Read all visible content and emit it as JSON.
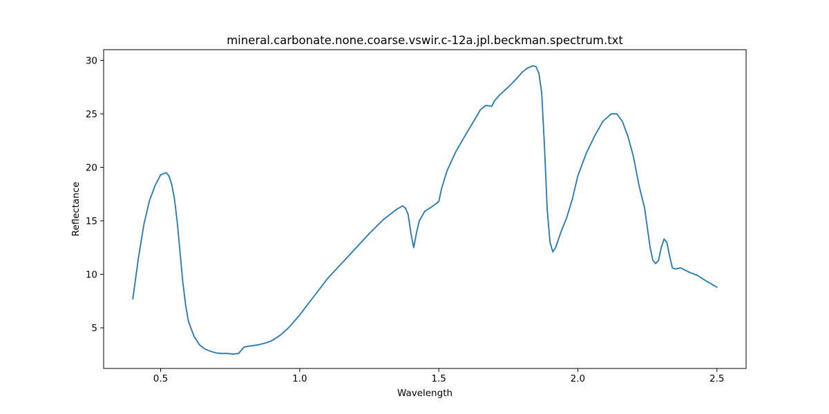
{
  "chart_data": {
    "type": "line",
    "title": "mineral.carbonate.none.coarse.vswir.c-12a.jpl.beckman.spectrum.txt",
    "xlabel": "Wavelength",
    "ylabel": "Reflectance",
    "xlim": [
      0.295,
      2.605
    ],
    "ylim": [
      1.2,
      31.0
    ],
    "xticks": [
      0.5,
      1.0,
      1.5,
      2.0,
      2.5
    ],
    "xtick_labels": [
      "0.5",
      "1.0",
      "1.5",
      "2.0",
      "2.5"
    ],
    "yticks": [
      5,
      10,
      15,
      20,
      25,
      30
    ],
    "ytick_labels": [
      "5",
      "10",
      "15",
      "20",
      "25",
      "30"
    ],
    "grid": false,
    "legend": "none",
    "series": [
      {
        "color": "#1f77b4",
        "x": [
          0.4,
          0.42,
          0.44,
          0.46,
          0.48,
          0.5,
          0.51,
          0.52,
          0.53,
          0.54,
          0.55,
          0.56,
          0.57,
          0.58,
          0.59,
          0.6,
          0.62,
          0.64,
          0.66,
          0.68,
          0.7,
          0.72,
          0.74,
          0.76,
          0.78,
          0.79,
          0.8,
          0.82,
          0.85,
          0.88,
          0.9,
          0.93,
          0.96,
          1.0,
          1.05,
          1.1,
          1.15,
          1.2,
          1.25,
          1.3,
          1.33,
          1.35,
          1.37,
          1.38,
          1.39,
          1.4,
          1.41,
          1.42,
          1.43,
          1.45,
          1.48,
          1.5,
          1.51,
          1.53,
          1.56,
          1.6,
          1.63,
          1.65,
          1.67,
          1.69,
          1.7,
          1.72,
          1.75,
          1.78,
          1.8,
          1.82,
          1.84,
          1.85,
          1.86,
          1.87,
          1.88,
          1.89,
          1.9,
          1.91,
          1.92,
          1.94,
          1.96,
          1.98,
          2.0,
          2.03,
          2.06,
          2.09,
          2.12,
          2.14,
          2.16,
          2.18,
          2.2,
          2.22,
          2.24,
          2.26,
          2.27,
          2.28,
          2.29,
          2.3,
          2.31,
          2.32,
          2.33,
          2.34,
          2.35,
          2.37,
          2.4,
          2.43,
          2.46,
          2.5
        ],
        "y": [
          7.7,
          11.5,
          14.7,
          16.9,
          18.3,
          19.3,
          19.4,
          19.5,
          19.2,
          18.4,
          17.0,
          14.8,
          12.0,
          9.2,
          7.1,
          5.6,
          4.2,
          3.4,
          3.0,
          2.8,
          2.65,
          2.6,
          2.6,
          2.55,
          2.6,
          2.9,
          3.2,
          3.3,
          3.4,
          3.6,
          3.8,
          4.3,
          5.0,
          6.2,
          7.9,
          9.6,
          11.0,
          12.4,
          13.8,
          15.1,
          15.7,
          16.1,
          16.4,
          16.2,
          15.6,
          13.8,
          12.5,
          13.9,
          15.0,
          15.9,
          16.4,
          16.8,
          18.0,
          19.7,
          21.4,
          23.2,
          24.5,
          25.4,
          25.8,
          25.7,
          26.2,
          26.8,
          27.5,
          28.3,
          28.9,
          29.3,
          29.5,
          29.4,
          28.8,
          27.0,
          22.0,
          16.0,
          13.0,
          12.1,
          12.5,
          14.0,
          15.3,
          17.0,
          19.2,
          21.3,
          22.9,
          24.3,
          25.0,
          25.0,
          24.3,
          22.9,
          21.0,
          18.3,
          16.2,
          12.5,
          11.3,
          11.0,
          11.3,
          12.5,
          13.3,
          13.0,
          11.7,
          10.6,
          10.5,
          10.6,
          10.2,
          9.9,
          9.4,
          8.8
        ]
      }
    ]
  }
}
